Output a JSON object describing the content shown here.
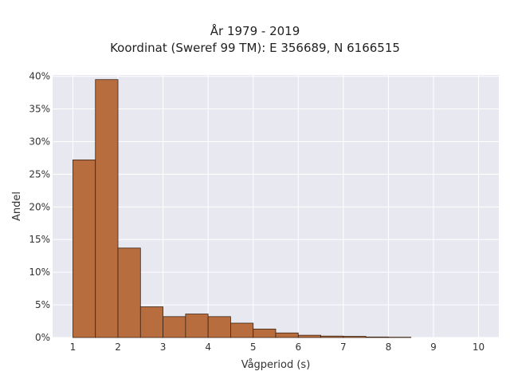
{
  "chart_data": {
    "type": "bar",
    "title_line1": "År 1979 - 2019",
    "title_line2": "Koordinat (Sweref 99 TM): E 356689, N 6166515",
    "xlabel": "Vågperiod (s)",
    "ylabel": "Andel",
    "x_range": [
      0.55,
      10.45
    ],
    "y_range": [
      0,
      0.402
    ],
    "x_ticks": [
      1,
      2,
      3,
      4,
      5,
      6,
      7,
      8,
      9,
      10
    ],
    "y_ticks": [
      0,
      0.05,
      0.1,
      0.15,
      0.2,
      0.25,
      0.3,
      0.35,
      0.4
    ],
    "y_tick_labels": [
      "0%",
      "5%",
      "10%",
      "15%",
      "20%",
      "25%",
      "30%",
      "35%",
      "40%"
    ],
    "grid": true,
    "bin_width": 0.5,
    "bins": [
      {
        "start": 1.0,
        "value": 0.272
      },
      {
        "start": 1.5,
        "value": 0.395
      },
      {
        "start": 2.0,
        "value": 0.137
      },
      {
        "start": 2.5,
        "value": 0.047
      },
      {
        "start": 3.0,
        "value": 0.032
      },
      {
        "start": 3.5,
        "value": 0.036
      },
      {
        "start": 4.0,
        "value": 0.032
      },
      {
        "start": 4.5,
        "value": 0.022
      },
      {
        "start": 5.0,
        "value": 0.013
      },
      {
        "start": 5.5,
        "value": 0.007
      },
      {
        "start": 6.0,
        "value": 0.0035
      },
      {
        "start": 6.5,
        "value": 0.0022
      },
      {
        "start": 7.0,
        "value": 0.0018
      },
      {
        "start": 7.5,
        "value": 0.0008
      },
      {
        "start": 8.0,
        "value": 0.0005
      }
    ],
    "colors": {
      "bar_fill": "#b86d3f",
      "bar_stroke": "#3d2414",
      "plot_bg": "#e8e8f0",
      "grid": "#ffffff"
    }
  }
}
